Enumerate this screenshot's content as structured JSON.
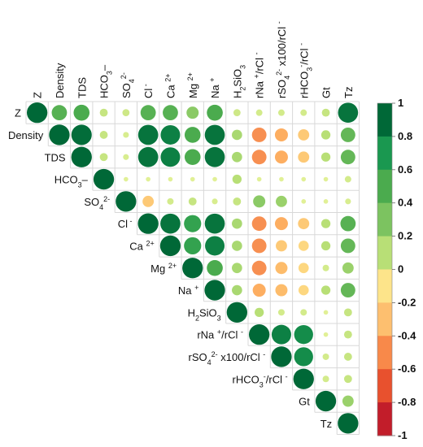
{
  "chart_data": {
    "type": "heatmap",
    "variables": [
      "Z",
      "Density",
      "TDS",
      "HCO3−",
      "SO42−",
      "Cl−",
      "Ca2+",
      "Mg2+",
      "Na+",
      "H2SiO3",
      "rNa+/rCl−",
      "rSO42−×100/rCl−",
      "rHCO3−/rCl−",
      "Gt",
      "Tz"
    ],
    "labels_rich": [
      [
        {
          "t": "Z"
        }
      ],
      [
        {
          "t": "Density"
        }
      ],
      [
        {
          "t": "TDS"
        }
      ],
      [
        {
          "t": "HCO"
        },
        {
          "t": "3",
          "s": "sub"
        },
        {
          "t": "–"
        }
      ],
      [
        {
          "t": "SO"
        },
        {
          "t": "4",
          "s": "sub"
        },
        {
          "t": "2-",
          "s": "sup"
        }
      ],
      [
        {
          "t": "Cl"
        },
        {
          "t": " -",
          "s": "sup"
        }
      ],
      [
        {
          "t": "Ca "
        },
        {
          "t": "2+",
          "s": "sup"
        }
      ],
      [
        {
          "t": "Mg "
        },
        {
          "t": "2+",
          "s": "sup"
        }
      ],
      [
        {
          "t": "Na "
        },
        {
          "t": "+",
          "s": "sup"
        }
      ],
      [
        {
          "t": "H"
        },
        {
          "t": "2",
          "s": "sub"
        },
        {
          "t": "SiO"
        },
        {
          "t": "3",
          "s": "sub"
        }
      ],
      [
        {
          "t": "rNa "
        },
        {
          "t": "+",
          "s": "sup"
        },
        {
          "t": "/rCl "
        },
        {
          "t": "-",
          "s": "sup"
        }
      ],
      [
        {
          "t": "rSO"
        },
        {
          "t": "4",
          "s": "sub"
        },
        {
          "t": "2-",
          "s": "sup"
        },
        {
          "t": " x100/rCl "
        },
        {
          "t": "-",
          "s": "sup"
        }
      ],
      [
        {
          "t": "rHCO"
        },
        {
          "t": "3",
          "s": "sub"
        },
        {
          "t": "-",
          "s": "sup"
        },
        {
          "t": "/rCl "
        },
        {
          "t": "-",
          "s": "sup"
        }
      ],
      [
        {
          "t": "Gt"
        }
      ],
      [
        {
          "t": "Tz"
        }
      ]
    ],
    "matrix": [
      [
        1,
        0.55,
        0.6,
        0.15,
        0.12,
        0.55,
        0.55,
        0.35,
        0.6,
        0.12,
        0.1,
        0.1,
        0.1,
        0.15,
        0.95
      ],
      [
        null,
        1,
        0.98,
        0.15,
        0.08,
        0.95,
        0.9,
        0.6,
        0.95,
        0.25,
        -0.5,
        -0.4,
        -0.3,
        0.2,
        0.5
      ],
      [
        null,
        null,
        1,
        0.15,
        0.08,
        0.95,
        0.9,
        0.6,
        0.95,
        0.25,
        -0.5,
        -0.4,
        -0.3,
        0.2,
        0.5
      ],
      [
        null,
        null,
        null,
        1,
        0.05,
        0.05,
        0.05,
        0.05,
        0.05,
        0.2,
        0.05,
        0.05,
        0.05,
        0.05,
        0.1
      ],
      [
        null,
        null,
        null,
        null,
        1,
        -0.3,
        0.1,
        0.15,
        0.08,
        0.15,
        0.35,
        0.3,
        0.05,
        0.05,
        0.08
      ],
      [
        null,
        null,
        null,
        null,
        null,
        1,
        0.95,
        0.7,
        0.95,
        0.25,
        -0.5,
        -0.4,
        -0.3,
        0.2,
        0.55
      ],
      [
        null,
        null,
        null,
        null,
        null,
        null,
        1,
        0.7,
        0.9,
        0.25,
        -0.5,
        -0.3,
        -0.25,
        0.2,
        0.5
      ],
      [
        null,
        null,
        null,
        null,
        null,
        null,
        null,
        1,
        0.6,
        0.25,
        -0.5,
        -0.35,
        -0.25,
        0.1,
        0.3
      ],
      [
        null,
        null,
        null,
        null,
        null,
        null,
        null,
        null,
        1,
        0.25,
        -0.4,
        -0.35,
        -0.25,
        0.2,
        0.5
      ],
      [
        null,
        null,
        null,
        null,
        null,
        null,
        null,
        null,
        null,
        1,
        0.2,
        0.1,
        0.1,
        0.05,
        0.15
      ],
      [
        null,
        null,
        null,
        null,
        null,
        null,
        null,
        null,
        null,
        null,
        1,
        0.9,
        0.85,
        0.05,
        0.15
      ],
      [
        null,
        null,
        null,
        null,
        null,
        null,
        null,
        null,
        null,
        null,
        null,
        1,
        0.85,
        0.1,
        0.15
      ],
      [
        null,
        null,
        null,
        null,
        null,
        null,
        null,
        null,
        null,
        null,
        null,
        null,
        1,
        0.1,
        0.15
      ],
      [
        null,
        null,
        null,
        null,
        null,
        null,
        null,
        null,
        null,
        null,
        null,
        null,
        null,
        1,
        0.3
      ],
      [
        null,
        null,
        null,
        null,
        null,
        null,
        null,
        null,
        null,
        null,
        null,
        null,
        null,
        null,
        1
      ]
    ],
    "colorbar": {
      "ticks": [
        "1",
        "0.8",
        "0.6",
        "0.4",
        "0.2",
        "0",
        "-0.2",
        "-0.4",
        "-0.6",
        "-0.8",
        "-1"
      ],
      "colors": [
        "#006837",
        "#1a9850",
        "#4bab4e",
        "#7cc360",
        "#b8df76",
        "#eef6a0",
        "#fde48a",
        "#fdae61",
        "#f07040",
        "#d73027",
        "#a50026"
      ],
      "range": [
        -1,
        1
      ]
    },
    "cell_shape": "circle",
    "layout": "upper-triangle",
    "grid": true
  }
}
